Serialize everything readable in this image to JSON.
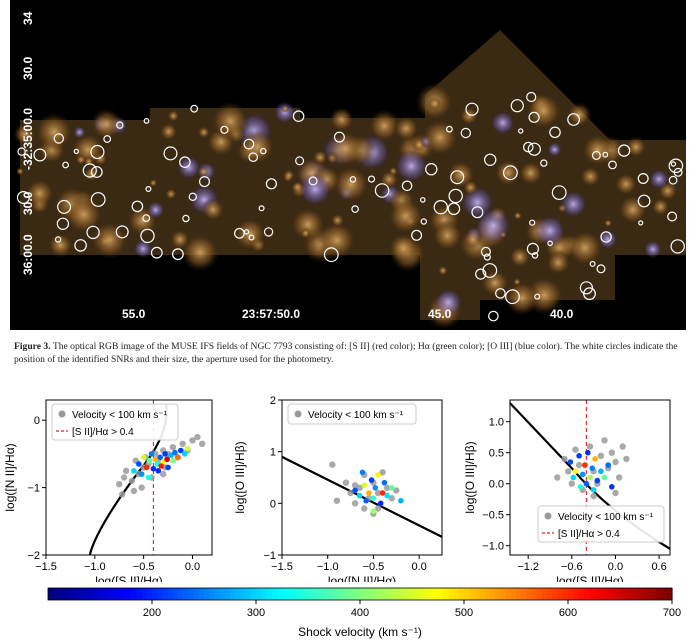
{
  "figure_top": {
    "dec_labels": [
      "30.0",
      "-32:35:00.0",
      "30.0",
      "36:00.0",
      "34"
    ],
    "ra_labels": [
      "55.0",
      "23:57:50.0",
      "45.0",
      "40.0"
    ]
  },
  "caption": {
    "label": "Figure 3.",
    "text": "The optical RGB image of the MUSE IFS fields of NGC 7793 consisting of: [S II] (red color); Hα (green color); [O III] (blue color). The white circles indicate the position of the identified SNRs and their size, the aperture used for the photometry."
  },
  "chart_data": [
    {
      "type": "scatter",
      "title": "",
      "xlabel": "log([S II]/Hα)",
      "ylabel": "log([N II]/Hα)",
      "xlim": [
        -1.5,
        0.2
      ],
      "ylim": [
        -2.0,
        0.3
      ],
      "xticks": [
        "−1.5",
        "−1.0",
        "−0.5",
        "0.0"
      ],
      "yticks": [
        "0",
        "−1",
        "−2"
      ],
      "legend": [
        "Velocity < 100 km s⁻¹",
        "[S II]/Hα > 0.4"
      ],
      "vline_x": -0.4,
      "series": [
        {
          "name": "low velocity (grey)",
          "points": [
            [
              -0.75,
              -0.95
            ],
            [
              -0.7,
              -0.85
            ],
            [
              -0.68,
              -0.75
            ],
            [
              -0.62,
              -0.9
            ],
            [
              -0.58,
              -0.6
            ],
            [
              -0.55,
              -0.8
            ],
            [
              -0.5,
              -0.7
            ],
            [
              -0.48,
              -0.55
            ],
            [
              -0.45,
              -0.65
            ],
            [
              -0.42,
              -0.85
            ],
            [
              -0.38,
              -0.5
            ],
            [
              -0.35,
              -0.6
            ],
            [
              -0.3,
              -0.45
            ],
            [
              -0.28,
              -0.7
            ],
            [
              -0.25,
              -0.5
            ],
            [
              -0.2,
              -0.4
            ],
            [
              -0.15,
              -0.55
            ],
            [
              -0.1,
              -0.35
            ],
            [
              -0.05,
              -0.45
            ],
            [
              0.0,
              -0.3
            ],
            [
              0.05,
              -0.25
            ],
            [
              0.1,
              -0.35
            ],
            [
              -0.6,
              -1.05
            ],
            [
              -0.72,
              -1.1
            ],
            [
              -0.52,
              -1.0
            ],
            [
              -0.3,
              -0.8
            ]
          ]
        },
        {
          "name": "shock velocity (colored)",
          "points": [
            [
              -0.6,
              -0.75,
              300
            ],
            [
              -0.55,
              -0.65,
              220
            ],
            [
              -0.5,
              -0.55,
              450
            ],
            [
              -0.47,
              -0.7,
              600
            ],
            [
              -0.44,
              -0.6,
              380
            ],
            [
              -0.42,
              -0.5,
              250
            ],
            [
              -0.4,
              -0.72,
              200
            ],
            [
              -0.38,
              -0.58,
              520
            ],
            [
              -0.36,
              -0.65,
              330
            ],
            [
              -0.33,
              -0.55,
              230
            ],
            [
              -0.3,
              -0.62,
              480
            ],
            [
              -0.28,
              -0.5,
              210
            ],
            [
              -0.26,
              -0.58,
              650
            ],
            [
              -0.22,
              -0.52,
              280
            ],
            [
              -0.2,
              -0.6,
              400
            ],
            [
              -0.18,
              -0.48,
              240
            ],
            [
              -0.15,
              -0.55,
              560
            ],
            [
              -0.12,
              -0.45,
              210
            ],
            [
              -0.08,
              -0.5,
              300
            ],
            [
              -0.05,
              -0.42,
              450
            ],
            [
              -0.52,
              -0.8,
              260
            ],
            [
              -0.45,
              -0.85,
              340
            ],
            [
              -0.35,
              -0.75,
              205
            ],
            [
              -0.32,
              -0.68,
              610
            ],
            [
              -0.25,
              -0.7,
              215
            ]
          ]
        }
      ]
    },
    {
      "type": "scatter",
      "xlabel": "log([N II]/Hα)",
      "ylabel": "log([O III]/Hβ)",
      "xlim": [
        -1.5,
        0.25
      ],
      "ylim": [
        -1.0,
        2.0
      ],
      "xticks": [
        "−1.5",
        "−1.0",
        "−0.5",
        "0.0"
      ],
      "yticks": [
        "2",
        "1",
        "0",
        "−1"
      ],
      "legend": [
        "Velocity < 100 km s⁻¹"
      ],
      "series": [
        {
          "name": "low velocity (grey)",
          "points": [
            [
              -0.95,
              0.75
            ],
            [
              -0.8,
              0.4
            ],
            [
              -0.75,
              0.2
            ],
            [
              -0.7,
              0.0
            ],
            [
              -0.65,
              0.3
            ],
            [
              -0.6,
              -0.1
            ],
            [
              -0.55,
              0.1
            ],
            [
              -0.5,
              0.4
            ],
            [
              -0.45,
              0.2
            ],
            [
              -0.4,
              0.6
            ],
            [
              -0.35,
              0.3
            ],
            [
              -0.3,
              0.1
            ],
            [
              -0.25,
              0.25
            ],
            [
              -0.9,
              0.05
            ],
            [
              -0.6,
              0.55
            ],
            [
              -0.5,
              -0.2
            ],
            [
              -0.45,
              -0.1
            ],
            [
              -0.7,
              0.35
            ]
          ]
        },
        {
          "name": "shock velocity (colored)",
          "points": [
            [
              -0.7,
              0.25,
              220
            ],
            [
              -0.65,
              0.15,
              300
            ],
            [
              -0.6,
              0.35,
              450
            ],
            [
              -0.58,
              0.05,
              230
            ],
            [
              -0.55,
              0.2,
              520
            ],
            [
              -0.52,
              0.45,
              210
            ],
            [
              -0.5,
              0.1,
              350
            ],
            [
              -0.48,
              0.3,
              260
            ],
            [
              -0.45,
              0.55,
              480
            ],
            [
              -0.42,
              0.0,
              200
            ],
            [
              -0.4,
              0.2,
              600
            ],
            [
              -0.38,
              0.4,
              240
            ],
            [
              -0.35,
              0.15,
              310
            ],
            [
              -0.5,
              -0.15,
              420
            ],
            [
              -0.62,
              0.6,
              250
            ],
            [
              -0.3,
              0.3,
              380
            ],
            [
              -0.2,
              0.05,
              280
            ]
          ]
        }
      ]
    },
    {
      "type": "scatter",
      "xlabel": "log([S II]/Hα)",
      "ylabel": "log([O III]/Hβ)",
      "xlim": [
        -1.45,
        0.75
      ],
      "ylim": [
        -1.15,
        1.35
      ],
      "xticks": [
        "−1.2",
        "−0.6",
        "0.0",
        "0.6"
      ],
      "yticks": [
        "1.0",
        "0.5",
        "0.0",
        "−0.5",
        "−1.0"
      ],
      "legend": [
        "Velocity < 100 km s⁻¹",
        "[S II]/Hα > 0.4"
      ],
      "vline_x": -0.4,
      "series": [
        {
          "name": "low velocity (grey)",
          "points": [
            [
              -0.7,
              0.4
            ],
            [
              -0.65,
              0.2
            ],
            [
              -0.6,
              0.0
            ],
            [
              -0.55,
              0.55
            ],
            [
              -0.5,
              0.3
            ],
            [
              -0.45,
              -0.1
            ],
            [
              -0.35,
              0.6
            ],
            [
              -0.3,
              0.2
            ],
            [
              -0.25,
              0.0
            ],
            [
              -0.2,
              0.45
            ],
            [
              -0.15,
              0.7
            ],
            [
              -0.1,
              0.25
            ],
            [
              -0.05,
              0.5
            ],
            [
              0.0,
              0.35
            ],
            [
              0.05,
              0.1
            ],
            [
              0.1,
              0.6
            ],
            [
              0.15,
              0.4
            ],
            [
              -0.8,
              0.1
            ],
            [
              -0.3,
              -0.2
            ],
            [
              0.0,
              -0.15
            ]
          ]
        },
        {
          "name": "shock velocity (colored)",
          "points": [
            [
              -0.62,
              0.35,
              220
            ],
            [
              -0.58,
              0.1,
              300
            ],
            [
              -0.55,
              0.2,
              480
            ],
            [
              -0.5,
              0.45,
              210
            ],
            [
              -0.48,
              -0.05,
              350
            ],
            [
              -0.45,
              0.15,
              260
            ],
            [
              -0.42,
              0.3,
              600
            ],
            [
              -0.4,
              0.0,
              230
            ],
            [
              -0.38,
              0.5,
              200
            ],
            [
              -0.35,
              0.1,
              420
            ],
            [
              -0.32,
              0.25,
              250
            ],
            [
              -0.3,
              -0.1,
              300
            ],
            [
              -0.28,
              0.4,
              520
            ],
            [
              -0.25,
              0.05,
              215
            ],
            [
              -0.2,
              0.2,
              280
            ],
            [
              -0.15,
              0.1,
              380
            ],
            [
              -0.1,
              0.3,
              240
            ],
            [
              -0.05,
              -0.05,
              205
            ]
          ]
        }
      ]
    },
    {
      "type": "colorbar",
      "xlabel": "Shock velocity (km s⁻¹)",
      "range": [
        100,
        700
      ],
      "ticks": [
        "200",
        "300",
        "400",
        "500",
        "600",
        "700"
      ]
    }
  ]
}
